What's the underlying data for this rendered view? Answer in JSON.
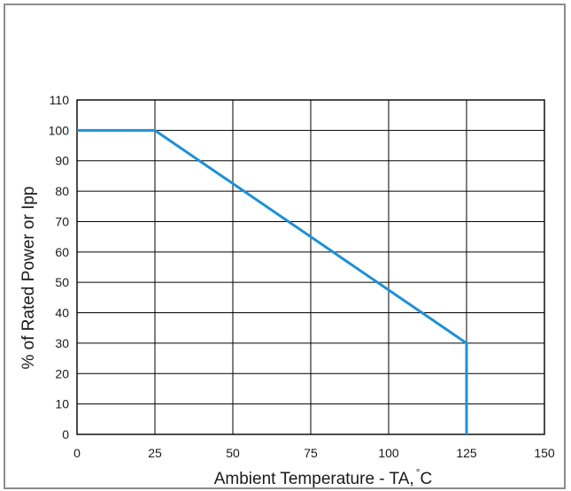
{
  "chart_data": {
    "type": "line",
    "xlabel": "Ambient Temperature - TA,",
    "xlabel_unit": "°C",
    "ylabel": "% of Rated Power or Ipp",
    "xlim": [
      0,
      150
    ],
    "ylim": [
      0,
      110
    ],
    "x_ticks": [
      "0",
      "25",
      "50",
      "75",
      "100",
      "125",
      "150"
    ],
    "y_ticks": [
      "0",
      "10",
      "20",
      "30",
      "40",
      "50",
      "60",
      "70",
      "80",
      "90",
      "100",
      "110"
    ],
    "grid": true,
    "line_color": "#1e90d6",
    "series": [
      {
        "x": [
          0,
          25,
          125,
          125
        ],
        "y": [
          100,
          100,
          30,
          0
        ]
      }
    ]
  }
}
